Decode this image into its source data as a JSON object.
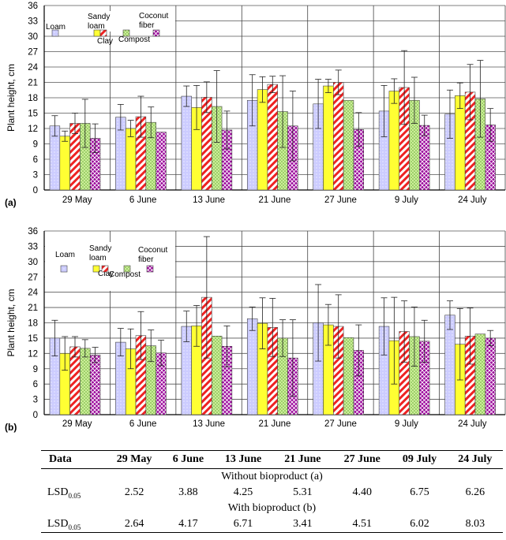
{
  "chart_data": [
    {
      "type": "bar",
      "panel_label": "(a)",
      "ylabel": "Plant height, cm",
      "ylim": [
        0,
        36
      ],
      "yticks": [
        0,
        3,
        6,
        9,
        12,
        15,
        18,
        21,
        24,
        27,
        30,
        33,
        36
      ],
      "categories": [
        "29 May",
        "6 June",
        "13 June",
        "21 June",
        "27 June",
        "9 July",
        "24 July"
      ],
      "legend_position": "top-left",
      "grid": true,
      "series": [
        {
          "name": "Loam",
          "color": "#ccccff",
          "pattern": "dots",
          "values": [
            12.5,
            14.2,
            18.3,
            17.5,
            16.8,
            15.4,
            14.8
          ],
          "errors": [
            2.0,
            2.5,
            2.0,
            5.0,
            4.8,
            5.0,
            4.7
          ]
        },
        {
          "name": "Clay",
          "color": "#ffff33",
          "pattern": "solid",
          "values": [
            10.5,
            12.0,
            16.1,
            19.6,
            20.3,
            19.3,
            18.4
          ],
          "errors": [
            1.0,
            1.6,
            4.3,
            2.5,
            1.3,
            2.4,
            2.5
          ]
        },
        {
          "name": "Sandy loam",
          "color": "#ee2222",
          "pattern": "hatch",
          "values": [
            13.0,
            14.3,
            18.1,
            20.6,
            21.0,
            20.0,
            19.1
          ],
          "errors": [
            2.0,
            4.0,
            3.0,
            1.6,
            2.4,
            7.2,
            5.4
          ]
        },
        {
          "name": "Compost",
          "color": "#99cc66",
          "pattern": "dots",
          "values": [
            13.0,
            13.2,
            16.3,
            15.3,
            17.5,
            17.5,
            17.8
          ],
          "errors": [
            4.7,
            3.0,
            7.0,
            7.0,
            0.0,
            4.5,
            7.5
          ]
        },
        {
          "name": "Coconut fiber",
          "color": "#990099",
          "pattern": "crosshatch",
          "values": [
            10.1,
            11.3,
            11.7,
            12.5,
            11.8,
            12.6,
            12.7
          ],
          "errors": [
            2.8,
            0.0,
            3.7,
            6.8,
            3.3,
            2.0,
            3.2
          ]
        }
      ]
    },
    {
      "type": "bar",
      "panel_label": "(b)",
      "ylabel": "Plant height, cm",
      "ylim": [
        0,
        36
      ],
      "yticks": [
        0,
        3,
        6,
        9,
        12,
        15,
        18,
        21,
        24,
        27,
        30,
        33,
        36
      ],
      "categories": [
        "29 May",
        "6 June",
        "13 June",
        "21 June",
        "27 June",
        "9 July",
        "24 July"
      ],
      "legend_position": "top-left",
      "grid": true,
      "series": [
        {
          "name": "Loam",
          "color": "#ccccff",
          "pattern": "dots",
          "values": [
            15.0,
            14.2,
            17.3,
            18.8,
            18.0,
            17.3,
            19.5
          ],
          "errors": [
            3.5,
            2.7,
            3.0,
            2.3,
            7.5,
            5.6,
            2.8
          ]
        },
        {
          "name": "Clay",
          "color": "#ffff33",
          "pattern": "solid",
          "values": [
            12.0,
            12.9,
            17.4,
            17.9,
            17.6,
            14.5,
            13.8
          ],
          "errors": [
            3.3,
            3.9,
            4.0,
            5.0,
            4.0,
            8.5,
            7.0
          ]
        },
        {
          "name": "Sandy loam",
          "color": "#ee2222",
          "pattern": "hatch",
          "values": [
            13.3,
            15.5,
            23.0,
            17.1,
            17.3,
            16.3,
            15.4
          ],
          "errors": [
            2.0,
            4.7,
            11.9,
            5.7,
            6.2,
            6.0,
            5.5
          ]
        },
        {
          "name": "Compost",
          "color": "#99cc66",
          "pattern": "dots",
          "values": [
            13.0,
            13.5,
            15.4,
            15.0,
            15.1,
            15.3,
            15.8
          ],
          "errors": [
            1.7,
            3.1,
            0.0,
            3.6,
            0.0,
            5.8,
            0.0
          ]
        },
        {
          "name": "Coconut fiber",
          "color": "#990099",
          "pattern": "crosshatch",
          "values": [
            11.7,
            12.1,
            13.4,
            11.1,
            12.6,
            14.4,
            15.0
          ],
          "errors": [
            1.5,
            2.5,
            4.0,
            7.5,
            5.0,
            4.1,
            1.5
          ]
        }
      ]
    }
  ],
  "table": {
    "headers": [
      "Data",
      "29 May",
      "6 June",
      "13 June",
      "21 June",
      "27 June",
      "09 July",
      "24 July"
    ],
    "caption_a": "Without bioproduct (a)",
    "caption_b": "With bioproduct (b)",
    "row_label": "LSD",
    "row_label_sub": "0.05",
    "row_a": [
      "2.52",
      "3.88",
      "4.25",
      "5.31",
      "4.40",
      "6.75",
      "6.26"
    ],
    "row_b": [
      "2.64",
      "4.17",
      "6.71",
      "3.41",
      "4.51",
      "6.02",
      "8.03"
    ]
  }
}
